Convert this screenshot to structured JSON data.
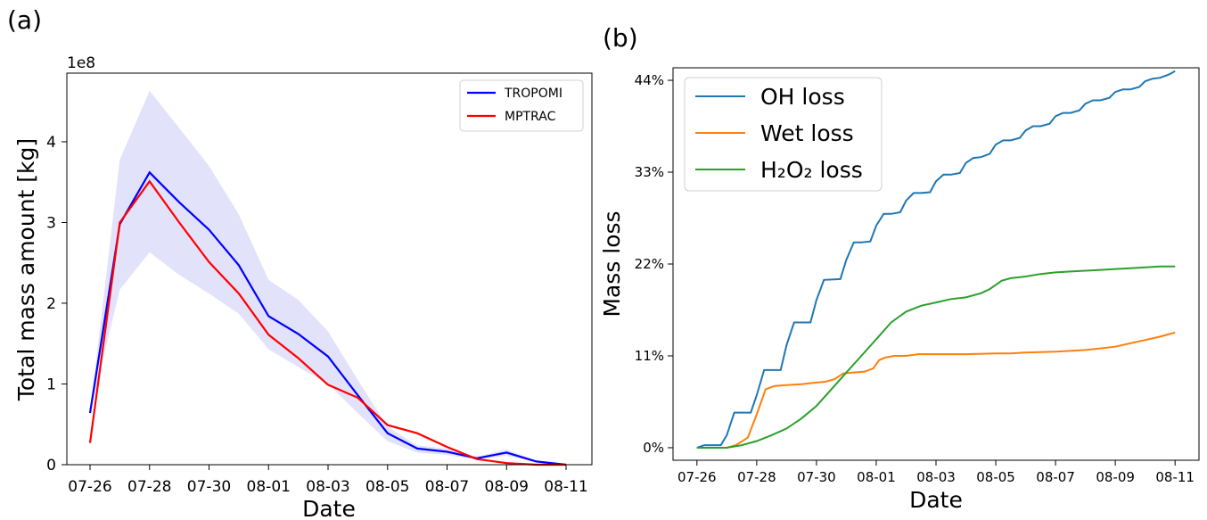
{
  "chart_data": [
    {
      "panel_label": "(a)",
      "type": "line",
      "xlabel": "Date",
      "ylabel": "Total mass amount [kg]",
      "y_multiplier": "1e8",
      "x_ticks": [
        "07-26",
        "07-28",
        "07-30",
        "08-01",
        "08-03",
        "08-05",
        "08-07",
        "08-09",
        "08-11"
      ],
      "y_ticks": [
        "0",
        "1",
        "2",
        "3",
        "4"
      ],
      "ylim": [
        0,
        4.85
      ],
      "x_dates": [
        "07-26",
        "07-27",
        "07-28",
        "07-29",
        "07-30",
        "07-31",
        "08-01",
        "08-02",
        "08-03",
        "08-04",
        "08-05",
        "08-06",
        "08-07",
        "08-08",
        "08-09",
        "08-10",
        "08-11"
      ],
      "legend_position": "top-right",
      "series": [
        {
          "name": "TROPOMI",
          "color": "#0000ff",
          "values": [
            0.64,
            2.98,
            3.62,
            3.25,
            2.91,
            2.47,
            1.84,
            1.62,
            1.34,
            0.86,
            0.39,
            0.2,
            0.16,
            0.08,
            0.15,
            0.04,
            0.0
          ]
        },
        {
          "name": "MPTRAC",
          "color": "#ff0000",
          "values": [
            0.27,
            3.0,
            3.51,
            3.0,
            2.51,
            2.12,
            1.61,
            1.32,
            0.99,
            0.83,
            0.49,
            0.39,
            0.22,
            0.07,
            0.02,
            0.0,
            0.0
          ]
        }
      ],
      "uncertainty_band": {
        "color": "#e2e2fb",
        "upper": [
          0.64,
          3.78,
          4.63,
          4.17,
          3.7,
          3.1,
          2.29,
          2.04,
          1.65,
          1.05,
          0.47,
          0.24,
          0.2,
          0.1,
          0.19,
          0.05,
          0.0
        ],
        "lower": [
          0.64,
          2.17,
          2.63,
          2.35,
          2.12,
          1.87,
          1.43,
          1.21,
          1.0,
          0.64,
          0.29,
          0.15,
          0.12,
          0.06,
          0.11,
          0.03,
          0.0
        ]
      }
    },
    {
      "panel_label": "(b)",
      "type": "line",
      "xlabel": "Date",
      "ylabel": "Mass loss",
      "x_ticks": [
        "07-26",
        "07-28",
        "07-30",
        "08-01",
        "08-03",
        "08-05",
        "08-07",
        "08-09",
        "08-11"
      ],
      "y_ticks": [
        "0%",
        "11%",
        "22%",
        "33%",
        "44%"
      ],
      "y_tick_values": [
        0,
        11,
        22,
        33,
        44
      ],
      "ylim": [
        -1.5,
        45.5
      ],
      "xlim_days": [
        -0.8,
        16.8
      ],
      "legend_position": "top-left",
      "series": [
        {
          "name": "OH loss",
          "color": "#1f77b4",
          "x": [
            0,
            0.25,
            0.8,
            1.0,
            1.25,
            1.5,
            1.8,
            2.0,
            2.25,
            2.8,
            3.0,
            3.25,
            3.8,
            4.0,
            4.25,
            4.8,
            5.0,
            5.25,
            5.5,
            5.8,
            6.0,
            6.25,
            6.5,
            6.8,
            7.0,
            7.25,
            7.5,
            7.8,
            8.0,
            8.25,
            8.5,
            8.8,
            9.0,
            9.25,
            9.5,
            9.8,
            10.0,
            10.25,
            10.5,
            10.8,
            11.0,
            11.25,
            11.5,
            11.8,
            12.0,
            12.25,
            12.5,
            12.8,
            13.0,
            13.25,
            13.5,
            13.8,
            14.0,
            14.25,
            14.5,
            14.8,
            15.0,
            15.25,
            15.5,
            15.8,
            16.0
          ],
          "values": [
            0,
            0.3,
            0.3,
            1.5,
            4.2,
            4.2,
            4.2,
            6.3,
            9.3,
            9.3,
            12.3,
            15.0,
            15.0,
            17.7,
            20.1,
            20.2,
            22.5,
            24.6,
            24.6,
            24.7,
            26.6,
            28.0,
            28.0,
            28.2,
            29.6,
            30.5,
            30.5,
            30.6,
            31.9,
            32.7,
            32.7,
            32.9,
            34.1,
            34.7,
            34.8,
            35.2,
            36.3,
            36.8,
            36.8,
            37.1,
            38.0,
            38.5,
            38.5,
            38.8,
            39.7,
            40.1,
            40.1,
            40.4,
            41.2,
            41.6,
            41.6,
            41.9,
            42.6,
            42.9,
            42.9,
            43.2,
            43.9,
            44.2,
            44.3,
            44.7,
            45.1
          ]
        },
        {
          "name": "Wet loss",
          "color": "#ff7f0e",
          "x": [
            0,
            0.5,
            1.0,
            1.3,
            1.7,
            2.0,
            2.3,
            2.6,
            3.0,
            3.5,
            4.0,
            4.3,
            4.6,
            4.9,
            5.2,
            5.6,
            5.9,
            6.1,
            6.3,
            6.6,
            7.0,
            7.4,
            8.0,
            9.0,
            10.0,
            10.5,
            11.0,
            12.0,
            12.5,
            13.0,
            13.5,
            14.0,
            14.5,
            15.0,
            15.5,
            15.8,
            16.0
          ],
          "values": [
            0,
            0,
            0,
            0.3,
            1.2,
            4.0,
            7.0,
            7.4,
            7.5,
            7.6,
            7.8,
            7.9,
            8.2,
            8.9,
            9.0,
            9.1,
            9.5,
            10.5,
            10.8,
            11.0,
            11.0,
            11.2,
            11.2,
            11.2,
            11.3,
            11.3,
            11.4,
            11.5,
            11.6,
            11.7,
            11.9,
            12.1,
            12.5,
            12.9,
            13.3,
            13.6,
            13.8
          ]
        },
        {
          "name": "H₂O₂ loss",
          "color": "#2ca02c",
          "x": [
            0,
            0.5,
            1.0,
            1.5,
            2.0,
            2.5,
            3.0,
            3.5,
            4.0,
            4.5,
            5.0,
            5.5,
            6.0,
            6.5,
            7.0,
            7.5,
            8.0,
            8.5,
            9.0,
            9.5,
            9.8,
            10.0,
            10.2,
            10.5,
            11.0,
            11.5,
            12.0,
            12.5,
            13.0,
            13.5,
            14.0,
            14.5,
            15.0,
            15.5,
            16.0
          ],
          "values": [
            0,
            0,
            0,
            0.3,
            0.8,
            1.5,
            2.3,
            3.5,
            5.0,
            7.0,
            9.0,
            11.0,
            13.0,
            15.0,
            16.3,
            17.0,
            17.4,
            17.8,
            18.0,
            18.5,
            19.0,
            19.5,
            20.0,
            20.3,
            20.5,
            20.8,
            21.0,
            21.1,
            21.2,
            21.3,
            21.4,
            21.5,
            21.6,
            21.7,
            21.7
          ]
        }
      ]
    }
  ]
}
